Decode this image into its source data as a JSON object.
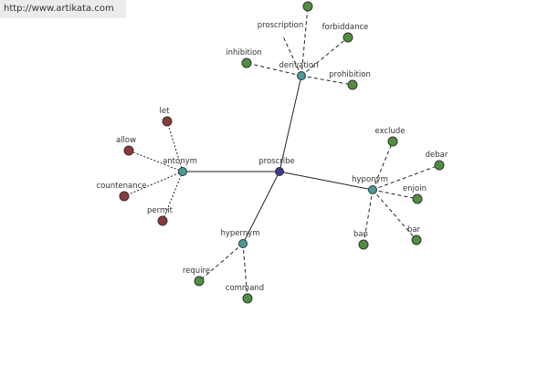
{
  "watermark": "http://www.artikata.com",
  "nodes": [
    {
      "label": "proscribe"
    },
    {
      "label": "derivation"
    },
    {
      "label": "antonym"
    },
    {
      "label": "hyponym"
    },
    {
      "label": "hypernym"
    },
    {
      "label": "proscription"
    },
    {
      "label": "forbiddance"
    },
    {
      "label": "inhibition"
    },
    {
      "label": "prohibition"
    },
    {
      "label": "let"
    },
    {
      "label": "allow"
    },
    {
      "label": "countenance"
    },
    {
      "label": "permit"
    },
    {
      "label": "exclude"
    },
    {
      "label": "debar"
    },
    {
      "label": "enjoin"
    },
    {
      "label": "bar"
    },
    {
      "label": "ban"
    },
    {
      "label": "require"
    },
    {
      "label": "command"
    }
  ]
}
